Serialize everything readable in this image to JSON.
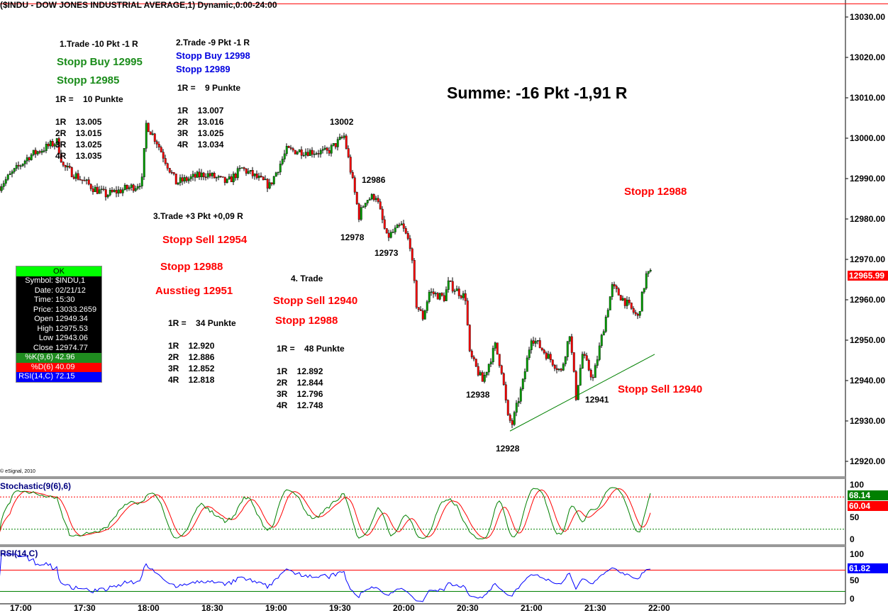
{
  "header": {
    "title": "($INDU - DOW JONES INDUSTRIAL AVERAGE,1) Dynamic,0:00-24:00",
    "copyright": "© eSignal, 2010"
  },
  "info_box": {
    "status": "OK",
    "rows": [
      {
        "k": "Symbol:",
        "v": "$INDU,1"
      },
      {
        "k": "Date:",
        "v": "02/21/12"
      },
      {
        "k": "Time:",
        "v": "15:30"
      },
      {
        "k": "Price:",
        "v": "13033.2659"
      },
      {
        "k": "Open",
        "v": "12949.34"
      },
      {
        "k": "High",
        "v": "12975.53"
      },
      {
        "k": "Low",
        "v": "12943.06"
      },
      {
        "k": "Close",
        "v": "12974.77"
      }
    ],
    "k_row": {
      "k": "%K(9,6)",
      "v": "42.96"
    },
    "d_row": {
      "k": "%D(6)",
      "v": "40.09"
    },
    "rsi_row": {
      "k": "RSI(14,C)",
      "v": "72.15"
    }
  },
  "annotations": {
    "t1_title": "1.Trade -10 Pkt -1 R",
    "t1_stop_buy": "Stopp Buy 12995",
    "t1_stop": "Stopp 12985",
    "t1_r": "1R =    10 Punkte",
    "t1_levels": [
      "1R    13.005",
      "2R    13.015",
      "3R    13.025",
      "4R    13.035"
    ],
    "t2_title": "2.Trade -9 Pkt -1 R",
    "t2_stop_buy": "Stopp Buy 12998",
    "t2_stop": "Stopp 12989",
    "t2_r": "1R =    9 Punkte",
    "t2_levels": [
      "1R    13.007",
      "2R    13.016",
      "3R    13.025",
      "4R    13.034"
    ],
    "t3_title": "3.Trade +3 Pkt +0,09 R",
    "t3_stop_sell": "Stopp Sell 12954",
    "t3_stop": "Stopp 12988",
    "t3_exit": "Ausstieg 12951",
    "t3_r": "1R =    34 Punkte",
    "t3_levels": [
      "1R    12.920",
      "2R    12.886",
      "3R    12.852",
      "4R    12.818"
    ],
    "t4_title": "4. Trade",
    "t4_stop_sell": "Stopp Sell 12940",
    "t4_stop": "Stopp 12988",
    "t4_r": "1R =    48 Punkte",
    "t4_levels": [
      "1R    12.892",
      "2R    12.844",
      "3R    12.796",
      "4R    12.748"
    ],
    "summe": "Summe: -16 Pkt -1,91 R",
    "right_stop": "Stopp 12988",
    "right_stop_sell": "Stopp Sell 12940",
    "price_marks": [
      "13002",
      "12986",
      "12978",
      "12973",
      "12938",
      "12928",
      "12941"
    ]
  },
  "colors": {
    "up": "#00a000",
    "down": "#ff0000",
    "stoch_k": "#008000",
    "stoch_d": "#ff0000",
    "rsi": "#0000ff",
    "trendline": "#008000"
  },
  "chart_data": {
    "type": "candlestick",
    "title": "($INDU - DOW JONES INDUSTRIAL AVERAGE,1) Dynamic,0:00-24:00",
    "interval_minutes": 1,
    "ylim": [
      12915,
      13035
    ],
    "yticks": [
      12920,
      12930,
      12940,
      12950,
      12960,
      12970,
      12980,
      12990,
      13000,
      13010,
      13020,
      13030
    ],
    "xticks": [
      "17:00",
      "17:30",
      "18:00",
      "18:30",
      "19:00",
      "19:30",
      "20:00",
      "20:30",
      "21:00",
      "21:30",
      "22:00"
    ],
    "price_path_minutes_after_1700": [
      [
        -10,
        12988.1
      ],
      [
        4,
        12995.6
      ],
      [
        17,
        12999.1
      ],
      [
        20,
        12993
      ],
      [
        34,
        12987.7
      ],
      [
        40,
        12986
      ],
      [
        54,
        12988.2
      ],
      [
        57,
        12989.5
      ],
      [
        59,
        13003.5
      ],
      [
        64,
        12999.1
      ],
      [
        67,
        12995.6
      ],
      [
        73,
        12989
      ],
      [
        87,
        12991.2
      ],
      [
        97,
        12989
      ],
      [
        104,
        12992.5
      ],
      [
        117,
        12988.2
      ],
      [
        125,
        12997
      ],
      [
        144,
        12996.5
      ],
      [
        152,
        13000.5
      ],
      [
        155,
        12992.1
      ],
      [
        159,
        12980.7
      ],
      [
        162,
        12984.7
      ],
      [
        167,
        12985.8
      ],
      [
        172,
        12975.4
      ],
      [
        179,
        12978.4
      ],
      [
        183,
        12973.7
      ],
      [
        186,
        12958.8
      ],
      [
        189,
        12955.6
      ],
      [
        192,
        12961.9
      ],
      [
        199,
        12960.5
      ],
      [
        201,
        12964
      ],
      [
        209,
        12960.5
      ],
      [
        211,
        12946.5
      ],
      [
        217,
        12939.8
      ],
      [
        223,
        12948.6
      ],
      [
        226,
        12942.6
      ],
      [
        229,
        12930.7
      ],
      [
        231,
        12929.3
      ],
      [
        236,
        12939.5
      ],
      [
        240,
        12950.9
      ],
      [
        247,
        12946.5
      ],
      [
        254,
        12942.1
      ],
      [
        258,
        12951.8
      ],
      [
        261,
        12936
      ],
      [
        264,
        12946.5
      ],
      [
        269,
        12940.4
      ],
      [
        274,
        12953.2
      ],
      [
        278,
        12963.2
      ],
      [
        284,
        12959.6
      ],
      [
        290,
        12955.6
      ],
      [
        294,
        12966.1
      ],
      [
        296,
        12966.5
      ]
    ],
    "last_price": "12965.99",
    "reference_line": 13033.27,
    "trendline": [
      [
        230,
        12927.5
      ],
      [
        298,
        12946.5
      ]
    ],
    "stochastic": {
      "label": "Stochastic(9(6),6)",
      "k_last": "68.14",
      "d_last": "60.04",
      "levels": [
        80,
        20
      ],
      "yticks": [
        "100",
        "50",
        "0"
      ]
    },
    "rsi": {
      "label": "RSI(14,C)",
      "last": "61.82",
      "levels": [
        70,
        30
      ],
      "yticks": [
        "100",
        "50",
        "0"
      ]
    }
  }
}
